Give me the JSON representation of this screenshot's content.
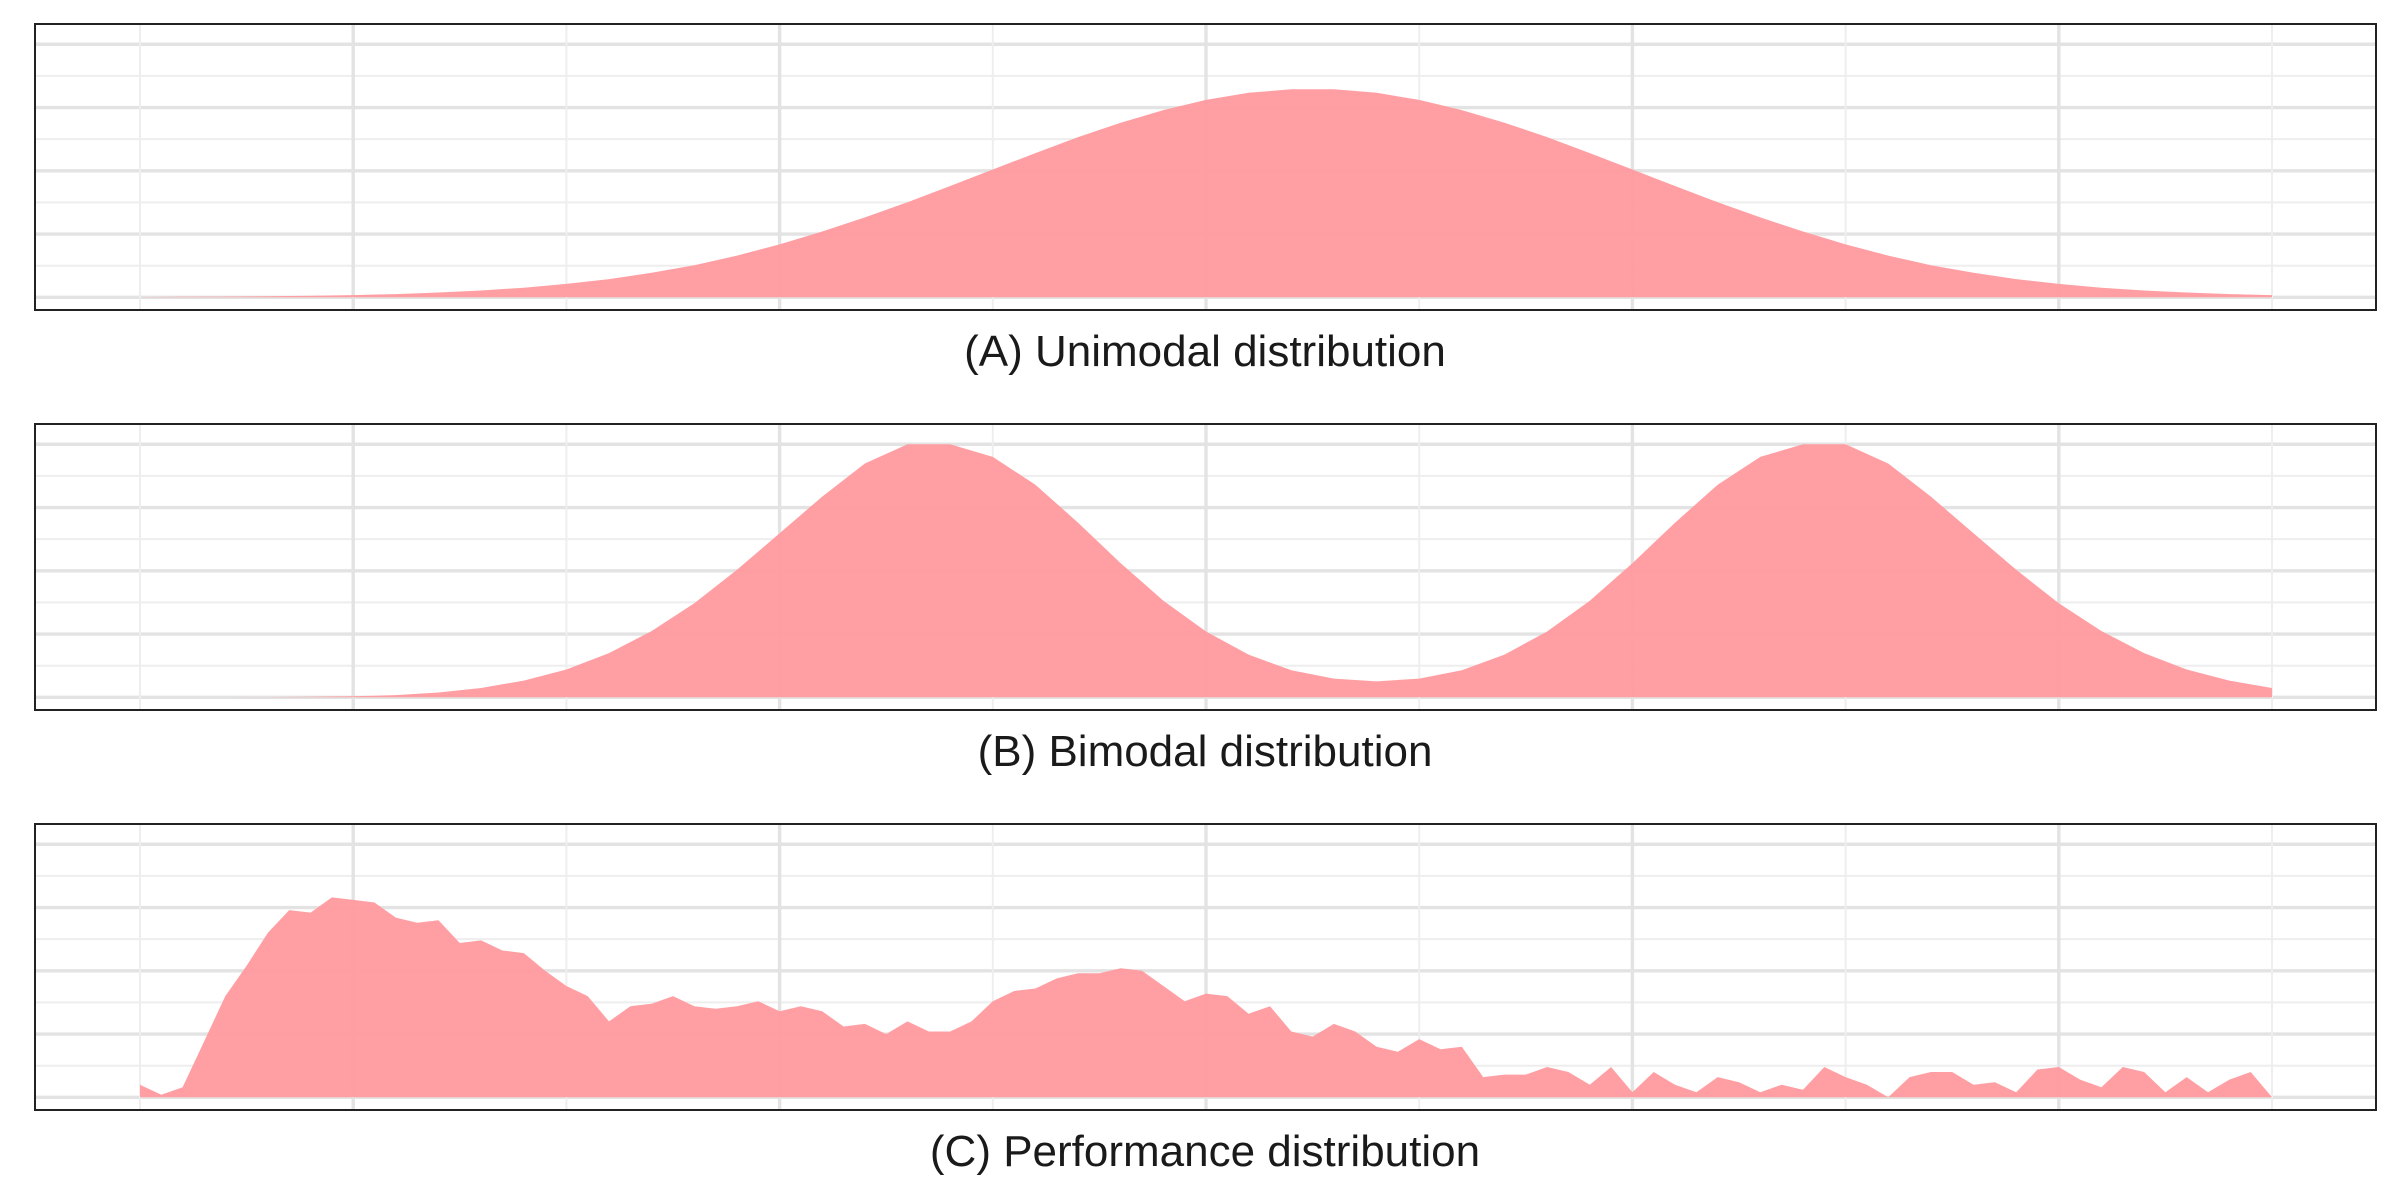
{
  "colors": {
    "fill": "#ff9a9e",
    "grid_major": "#e3e3e3",
    "grid_minor": "#eeeeee",
    "frame": "#222222",
    "text": "#1a1a1a"
  },
  "chart_data": [
    {
      "type": "area",
      "title": "(A) Unimodal distribution",
      "xlim": [
        0,
        10
      ],
      "ylim": [
        -0.05,
        1.08
      ],
      "grid": true,
      "x": [
        0.0,
        0.2,
        0.4,
        0.6,
        0.8,
        1.0,
        1.2,
        1.4,
        1.6,
        1.8,
        2.0,
        2.2,
        2.4,
        2.6,
        2.8,
        3.0,
        3.2,
        3.4,
        3.6,
        3.8,
        4.0,
        4.2,
        4.4,
        4.6,
        4.8,
        5.0,
        5.2,
        5.4,
        5.6,
        5.8,
        6.0,
        6.2,
        6.4,
        6.6,
        6.8,
        7.0,
        7.2,
        7.4,
        7.6,
        7.8,
        8.0,
        8.2,
        8.4,
        8.6,
        8.8,
        9.0,
        9.2,
        9.4,
        9.6,
        9.8,
        10.0
      ],
      "y": [
        0.001,
        0.002,
        0.003,
        0.004,
        0.006,
        0.009,
        0.013,
        0.019,
        0.027,
        0.038,
        0.053,
        0.072,
        0.097,
        0.127,
        0.165,
        0.209,
        0.26,
        0.316,
        0.376,
        0.44,
        0.505,
        0.57,
        0.633,
        0.69,
        0.74,
        0.78,
        0.808,
        0.822,
        0.822,
        0.808,
        0.78,
        0.74,
        0.69,
        0.633,
        0.57,
        0.505,
        0.44,
        0.376,
        0.316,
        0.26,
        0.209,
        0.165,
        0.127,
        0.097,
        0.072,
        0.053,
        0.038,
        0.027,
        0.019,
        0.013,
        0.009
      ]
    },
    {
      "type": "area",
      "title": "(B) Bimodal distribution",
      "xlim": [
        0,
        10
      ],
      "ylim": [
        -0.05,
        1.08
      ],
      "grid": true,
      "x": [
        0.0,
        0.2,
        0.4,
        0.6,
        0.8,
        1.0,
        1.2,
        1.4,
        1.6,
        1.8,
        2.0,
        2.2,
        2.4,
        2.6,
        2.8,
        3.0,
        3.2,
        3.4,
        3.6,
        3.8,
        4.0,
        4.2,
        4.4,
        4.6,
        4.8,
        5.0,
        5.2,
        5.4,
        5.6,
        5.8,
        6.0,
        6.2,
        6.4,
        6.6,
        6.8,
        7.0,
        7.2,
        7.4,
        7.6,
        7.8,
        8.0,
        8.2,
        8.4,
        8.6,
        8.8,
        9.0,
        9.2,
        9.4,
        9.6,
        9.8,
        10.0
      ],
      "y": [
        0.0,
        0.0,
        0.0,
        0.001,
        0.002,
        0.004,
        0.009,
        0.019,
        0.037,
        0.066,
        0.11,
        0.175,
        0.262,
        0.372,
        0.504,
        0.648,
        0.793,
        0.924,
        1.0,
        1.0,
        0.95,
        0.84,
        0.69,
        0.53,
        0.382,
        0.26,
        0.169,
        0.107,
        0.074,
        0.063,
        0.074,
        0.107,
        0.169,
        0.26,
        0.382,
        0.53,
        0.69,
        0.84,
        0.95,
        1.0,
        1.0,
        0.924,
        0.793,
        0.648,
        0.504,
        0.372,
        0.262,
        0.175,
        0.11,
        0.066,
        0.037
      ]
    },
    {
      "type": "area",
      "title": "(C) Performance distribution",
      "xlim": [
        0,
        10
      ],
      "ylim": [
        -0.05,
        1.08
      ],
      "grid": true,
      "x": [
        0.0,
        0.1,
        0.2,
        0.3,
        0.4,
        0.5,
        0.6,
        0.7,
        0.8,
        0.9,
        1.0,
        1.1,
        1.2,
        1.3,
        1.4,
        1.5,
        1.6,
        1.7,
        1.8,
        1.9,
        2.0,
        2.1,
        2.2,
        2.3,
        2.4,
        2.5,
        2.6,
        2.7,
        2.8,
        2.9,
        3.0,
        3.1,
        3.2,
        3.3,
        3.4,
        3.5,
        3.6,
        3.7,
        3.8,
        3.9,
        4.0,
        4.1,
        4.2,
        4.3,
        4.4,
        4.5,
        4.6,
        4.7,
        4.8,
        4.9,
        5.0,
        5.1,
        5.2,
        5.3,
        5.4,
        5.5,
        5.6,
        5.7,
        5.8,
        5.9,
        6.0,
        6.1,
        6.2,
        6.3,
        6.4,
        6.5,
        6.6,
        6.7,
        6.8,
        6.9,
        7.0,
        7.1,
        7.2,
        7.3,
        7.4,
        7.5,
        7.6,
        7.7,
        7.8,
        7.9,
        8.0,
        8.1,
        8.2,
        8.3,
        8.4,
        8.5,
        8.6,
        8.7,
        8.8,
        8.9,
        9.0,
        9.1,
        9.2,
        9.3,
        9.4,
        9.5,
        9.6,
        9.7,
        9.8,
        9.9,
        10.0
      ],
      "y": [
        0.05,
        0.01,
        0.04,
        0.22,
        0.4,
        0.52,
        0.65,
        0.74,
        0.73,
        0.79,
        0.78,
        0.77,
        0.71,
        0.69,
        0.7,
        0.61,
        0.62,
        0.58,
        0.57,
        0.5,
        0.44,
        0.4,
        0.3,
        0.36,
        0.37,
        0.4,
        0.36,
        0.35,
        0.36,
        0.38,
        0.34,
        0.36,
        0.34,
        0.28,
        0.29,
        0.25,
        0.3,
        0.26,
        0.26,
        0.3,
        0.38,
        0.42,
        0.43,
        0.47,
        0.49,
        0.49,
        0.51,
        0.5,
        0.44,
        0.38,
        0.41,
        0.4,
        0.33,
        0.36,
        0.26,
        0.24,
        0.29,
        0.26,
        0.2,
        0.18,
        0.23,
        0.19,
        0.2,
        0.08,
        0.09,
        0.09,
        0.12,
        0.1,
        0.05,
        0.12,
        0.02,
        0.1,
        0.05,
        0.02,
        0.08,
        0.06,
        0.02,
        0.05,
        0.03,
        0.12,
        0.08,
        0.05,
        0.0,
        0.08,
        0.1,
        0.1,
        0.05,
        0.06,
        0.02,
        0.11,
        0.12,
        0.07,
        0.04,
        0.12,
        0.1,
        0.02,
        0.08,
        0.02,
        0.07,
        0.1,
        0.0
      ]
    }
  ]
}
